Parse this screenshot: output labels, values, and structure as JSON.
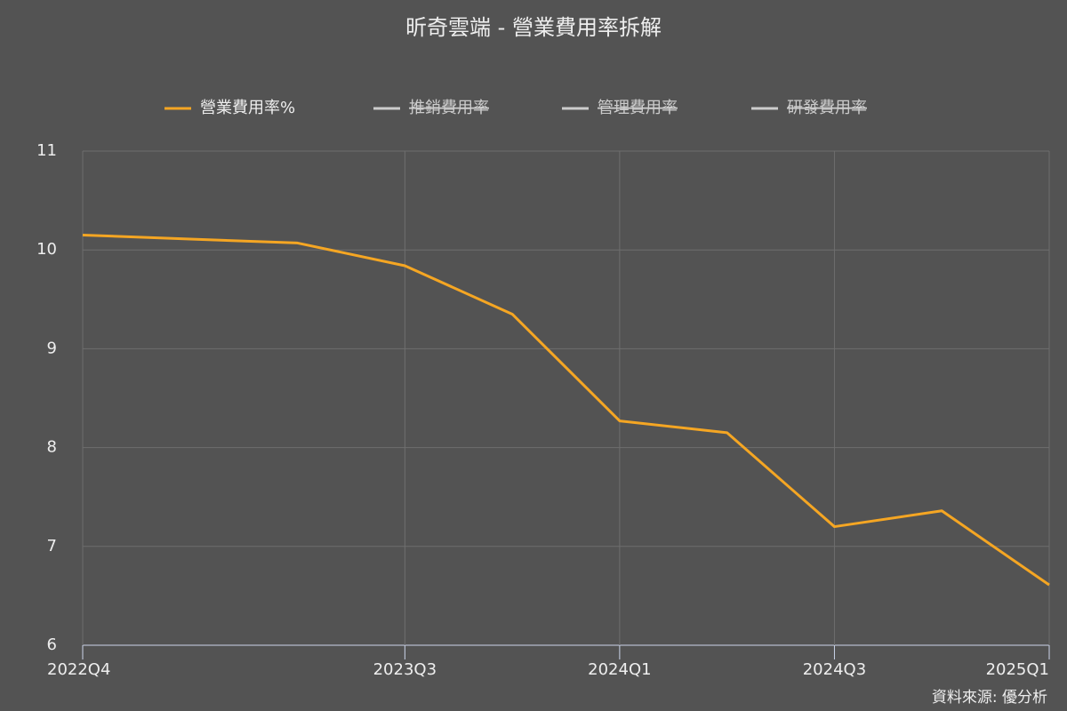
{
  "chart_data": {
    "type": "line",
    "title": "昕奇雲端 - 營業費用率拆解",
    "categories": [
      "2022Q4",
      null,
      null,
      "2023Q3",
      null,
      "2024Q1",
      null,
      "2024Q3",
      null,
      "2025Q1"
    ],
    "series": [
      {
        "name": "營業費用率%",
        "color": "#f5a623",
        "values": [
          10.15,
          10.11,
          10.07,
          9.84,
          9.35,
          8.27,
          8.15,
          7.2,
          7.36,
          6.61
        ]
      },
      {
        "name": "推銷費用率",
        "color": "#cccccc",
        "hidden": true,
        "values": [
          null,
          null,
          null,
          null,
          null,
          null,
          null,
          null,
          null,
          null
        ]
      },
      {
        "name": "管理費用率",
        "color": "#cccccc",
        "hidden": true,
        "values": [
          null,
          null,
          null,
          null,
          null,
          null,
          null,
          null,
          null,
          null
        ]
      },
      {
        "name": "研發費用率",
        "color": "#cccccc",
        "hidden": true,
        "values": [
          null,
          null,
          null,
          null,
          null,
          null,
          null,
          null,
          null,
          null
        ]
      }
    ],
    "ylim": [
      6,
      11
    ],
    "yticks": [
      6,
      7,
      8,
      9,
      10,
      11
    ],
    "grid": true,
    "source": "資料來源: 優分析"
  }
}
